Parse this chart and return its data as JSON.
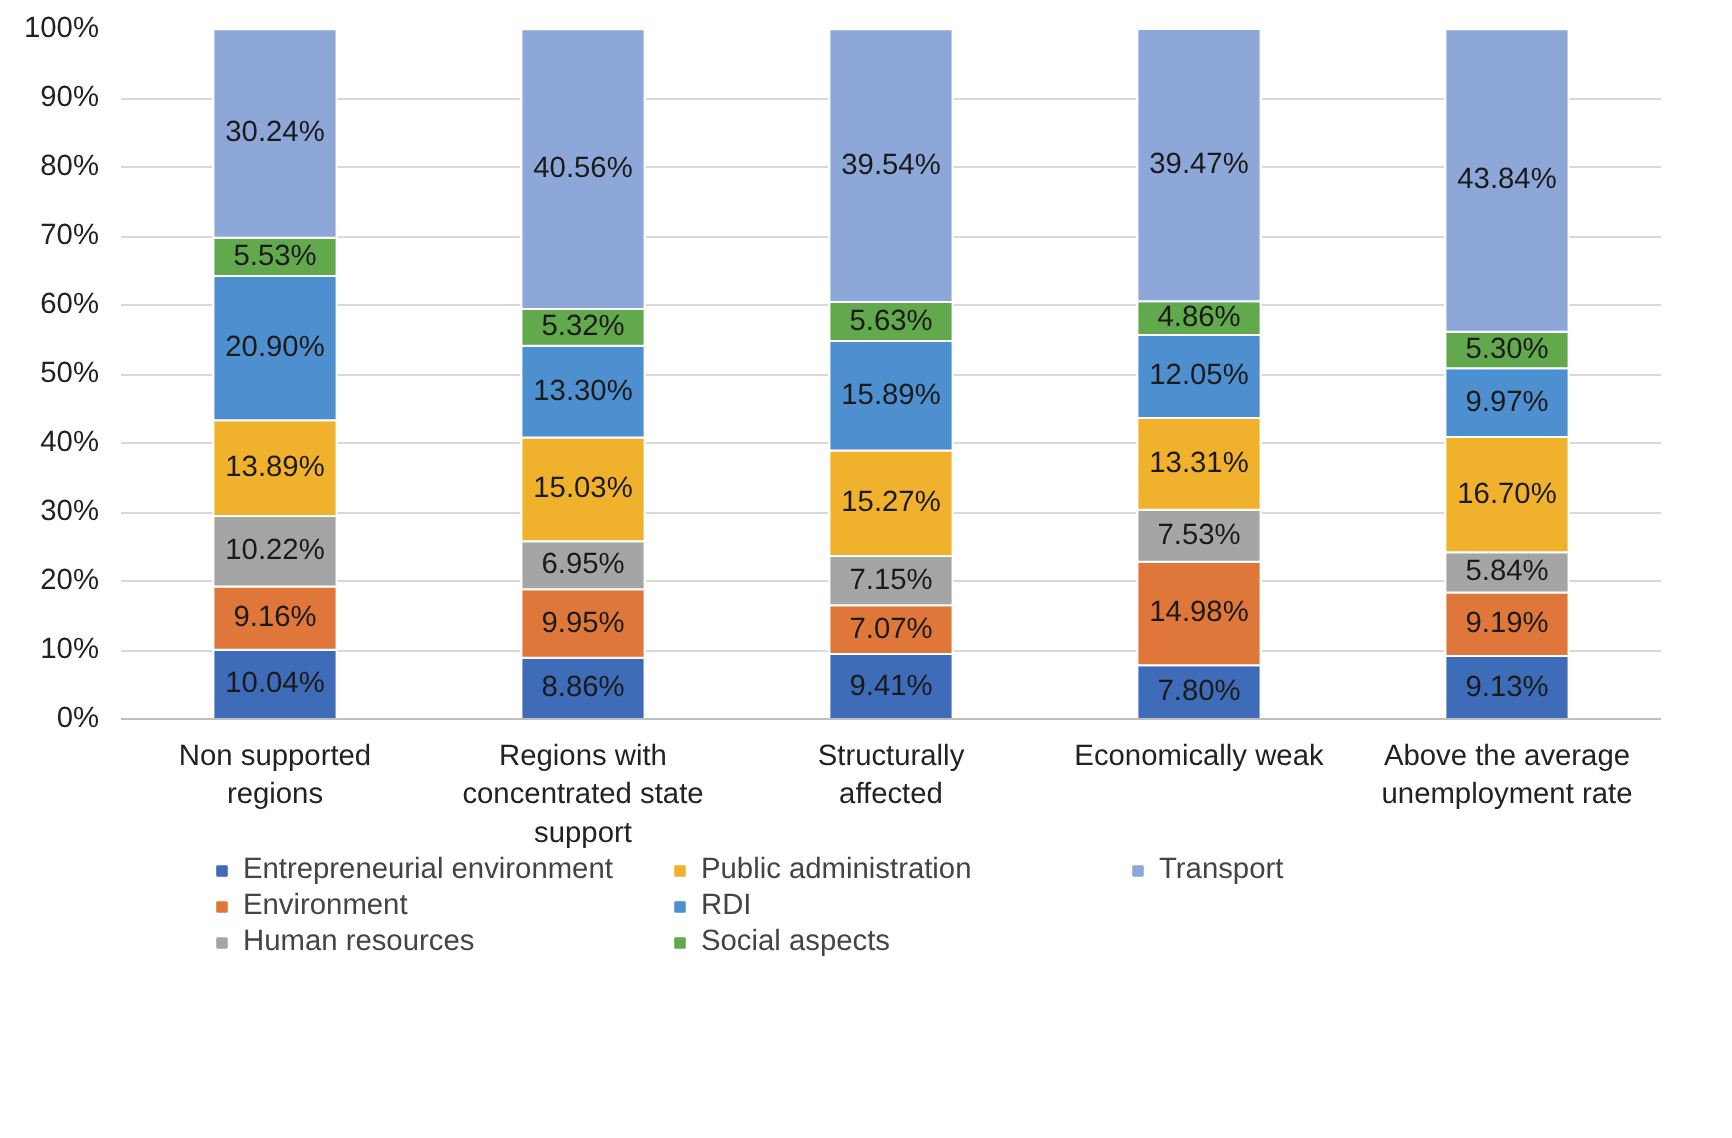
{
  "chart_data": {
    "type": "bar",
    "stacked": true,
    "categories": [
      "Non supported regions",
      "Regions with concentrated state support",
      "Structurally affected",
      "Economically weak",
      "Above the average unemployment rate"
    ],
    "series": [
      {
        "name": "Entrepreneurial environment",
        "color": "#3f6cb8",
        "values": [
          10.04,
          8.86,
          9.41,
          7.8,
          9.13
        ],
        "value_labels": [
          "10.04%",
          "8.86%",
          "9.41%",
          "7.80%",
          "9.13%"
        ]
      },
      {
        "name": "Environment",
        "color": "#e0773a",
        "values": [
          9.16,
          9.95,
          7.07,
          14.98,
          9.19
        ],
        "value_labels": [
          "9.16%",
          "9.95%",
          "7.07%",
          "14.98%",
          "9.19%"
        ]
      },
      {
        "name": "Human resources",
        "color": "#a5a5a5",
        "values": [
          10.22,
          6.95,
          7.15,
          7.53,
          5.84
        ],
        "value_labels": [
          "10.22%",
          "6.95%",
          "7.15%",
          "7.53%",
          "5.84%"
        ]
      },
      {
        "name": "Public administration",
        "color": "#f0b22c",
        "values": [
          13.89,
          15.03,
          15.27,
          13.31,
          16.7
        ],
        "value_labels": [
          "13.89%",
          "15.03%",
          "15.27%",
          "13.31%",
          "16.70%"
        ]
      },
      {
        "name": "RDI",
        "color": "#4e8fcf",
        "values": [
          20.9,
          13.3,
          15.89,
          12.05,
          9.97
        ],
        "value_labels": [
          "20.90%",
          "13.30%",
          "15.89%",
          "12.05%",
          "9.97%"
        ]
      },
      {
        "name": "Social aspects",
        "color": "#62a84c",
        "values": [
          5.53,
          5.32,
          5.63,
          4.86,
          5.3
        ],
        "value_labels": [
          "5.53%",
          "5.32%",
          "5.63%",
          "4.86%",
          "5.30%"
        ]
      },
      {
        "name": "Transport",
        "color": "#8ea7d9",
        "values": [
          30.24,
          40.56,
          39.54,
          39.47,
          43.84
        ],
        "value_labels": [
          "30.24%",
          "40.56%",
          "39.54%",
          "39.47%",
          "43.84%"
        ]
      }
    ],
    "ylim": [
      0,
      100
    ],
    "yticks": [
      {
        "value": 0,
        "label": "0%"
      },
      {
        "value": 10,
        "label": "10%"
      },
      {
        "value": 20,
        "label": "20%"
      },
      {
        "value": 30,
        "label": "30%"
      },
      {
        "value": 40,
        "label": "40%"
      },
      {
        "value": 50,
        "label": "50%"
      },
      {
        "value": 60,
        "label": "60%"
      },
      {
        "value": 70,
        "label": "70%"
      },
      {
        "value": 80,
        "label": "80%"
      },
      {
        "value": 90,
        "label": "90%"
      },
      {
        "value": 100,
        "label": "100%"
      }
    ],
    "grid": "y",
    "legend": "bottom"
  }
}
